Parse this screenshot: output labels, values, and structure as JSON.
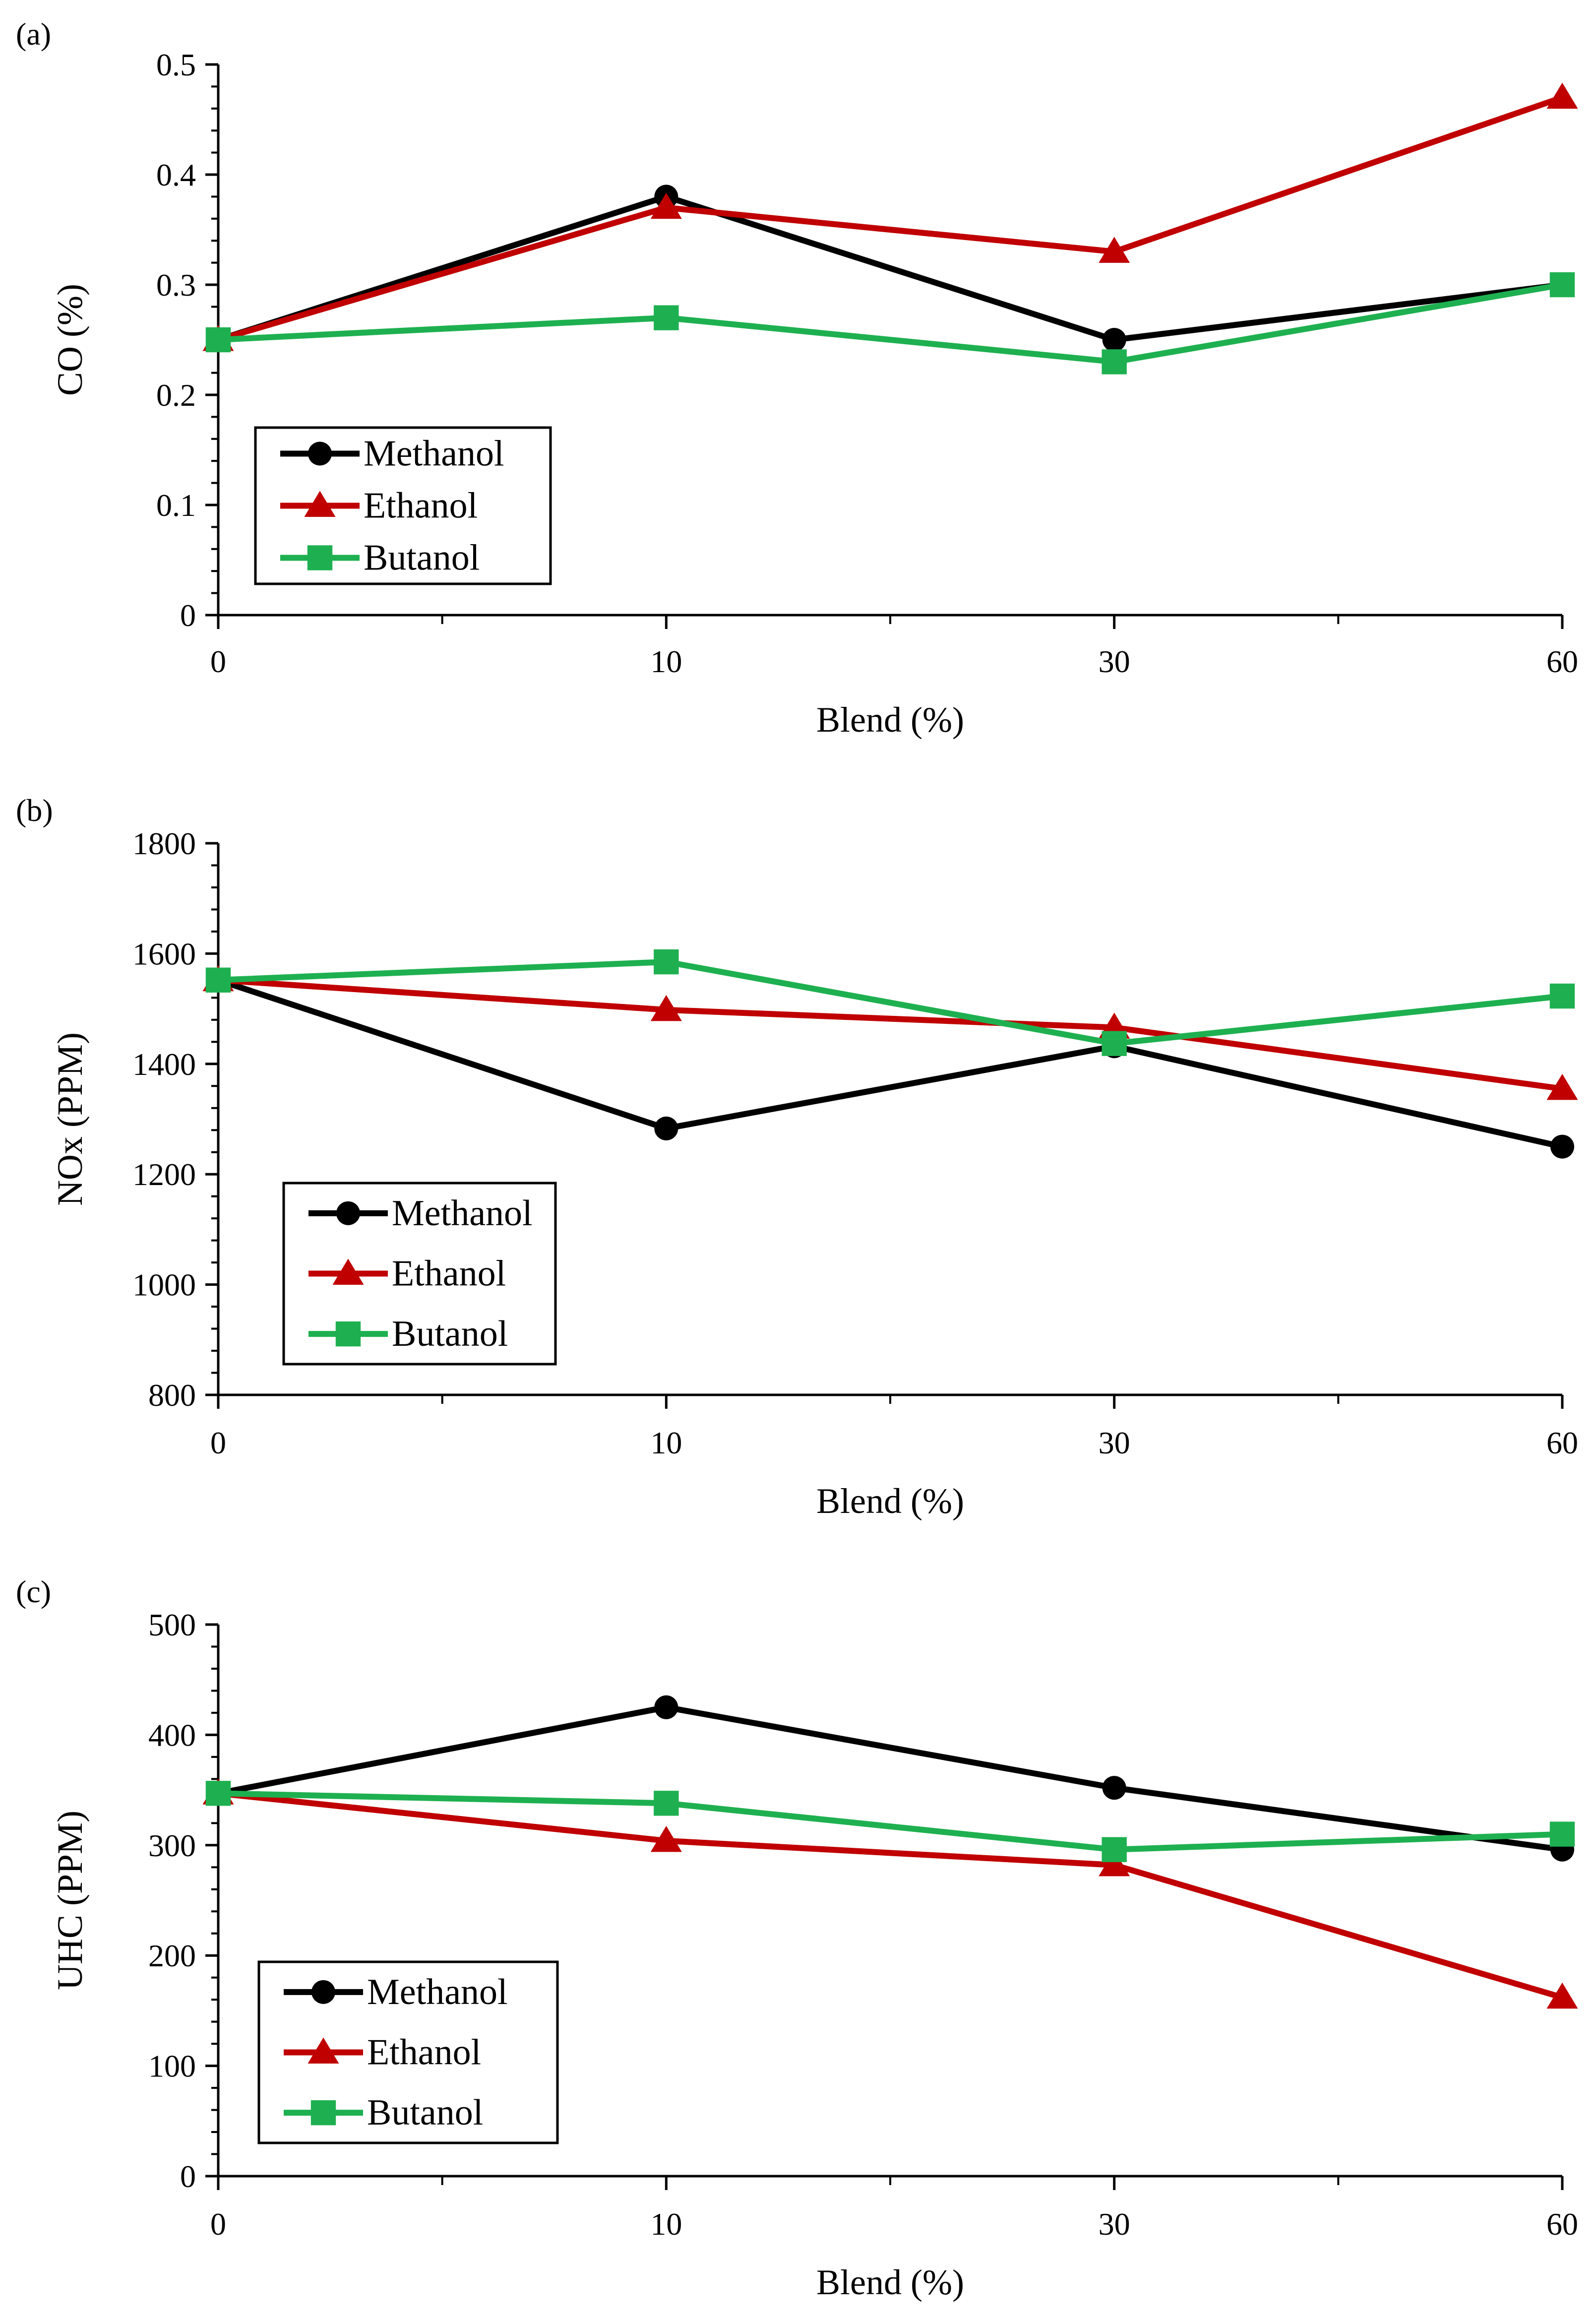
{
  "colors": {
    "Methanol": "#000000",
    "Ethanol": "#c00000",
    "Butanol": "#1eb050",
    "axis": "#000000"
  },
  "chart_data": [
    {
      "type": "line",
      "panel_label": "(a)",
      "xlabel": "Blend (%)",
      "ylabel": "CO (%)",
      "categories": [
        "0",
        "10",
        "30",
        "60"
      ],
      "ylim": [
        0,
        0.5
      ],
      "yticks": [
        "0",
        "0.1",
        "0.2",
        "0.3",
        "0.4",
        "0.5"
      ],
      "grid": false,
      "legend_position": "bottom-left",
      "series": [
        {
          "name": "Methanol",
          "marker": "circle",
          "values": [
            0.25,
            0.38,
            0.25,
            0.3
          ]
        },
        {
          "name": "Ethanol",
          "marker": "triangle",
          "values": [
            0.25,
            0.37,
            0.33,
            0.47
          ]
        },
        {
          "name": "Butanol",
          "marker": "square",
          "values": [
            0.25,
            0.27,
            0.23,
            0.3
          ]
        }
      ]
    },
    {
      "type": "line",
      "panel_label": "(b)",
      "xlabel": "Blend (%)",
      "ylabel": "NOx (PPM)",
      "categories": [
        "0",
        "10",
        "30",
        "60"
      ],
      "ylim": [
        800,
        1800
      ],
      "yticks": [
        "800",
        "1000",
        "1200",
        "1400",
        "1600",
        "1800"
      ],
      "grid": false,
      "legend_position": "bottom-left",
      "series": [
        {
          "name": "Methanol",
          "marker": "circle",
          "values": [
            1552,
            1283,
            1432,
            1250
          ]
        },
        {
          "name": "Ethanol",
          "marker": "triangle",
          "values": [
            1552,
            1498,
            1466,
            1355
          ]
        },
        {
          "name": "Butanol",
          "marker": "square",
          "values": [
            1552,
            1585,
            1437,
            1523
          ]
        }
      ]
    },
    {
      "type": "line",
      "panel_label": "(c)",
      "xlabel": "Blend (%)",
      "ylabel": "UHC (PPM)",
      "categories": [
        "0",
        "10",
        "30",
        "60"
      ],
      "ylim": [
        0,
        500
      ],
      "yticks": [
        "0",
        "100",
        "200",
        "300",
        "400",
        "500"
      ],
      "grid": false,
      "legend_position": "bottom-left",
      "series": [
        {
          "name": "Methanol",
          "marker": "circle",
          "values": [
            347,
            425,
            352,
            296
          ]
        },
        {
          "name": "Ethanol",
          "marker": "triangle",
          "values": [
            347,
            304,
            282,
            162
          ]
        },
        {
          "name": "Butanol",
          "marker": "square",
          "values": [
            347,
            338,
            296,
            310
          ]
        }
      ]
    }
  ]
}
